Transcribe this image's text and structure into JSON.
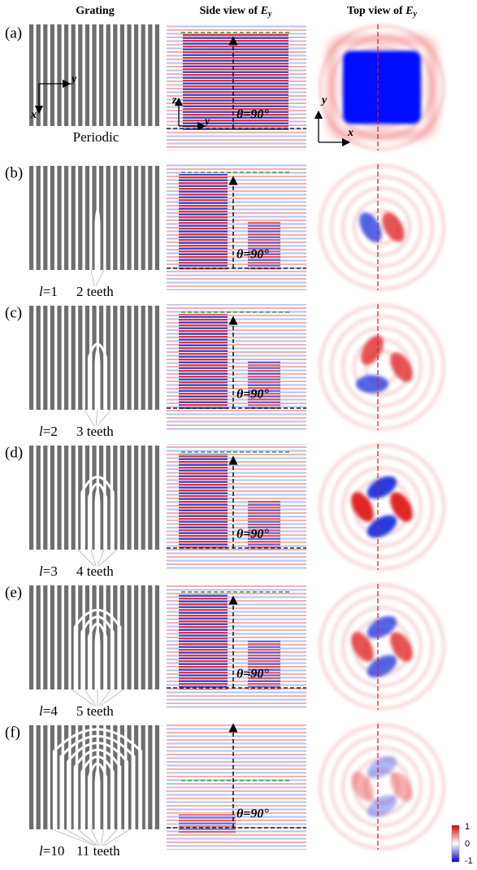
{
  "headers": [
    {
      "text": "Grating"
    },
    {
      "text": "Side view of ",
      "symbol": "E",
      "subscript": "y"
    },
    {
      "text": "Top view of ",
      "symbol": "E",
      "subscript": "y"
    }
  ],
  "panels": [
    {
      "label": "(a)",
      "caption": "Periodic",
      "angle": "θ=90°"
    },
    {
      "label": "(b)",
      "l_symbol": "l",
      "l_value": "=1",
      "teeth": "2 teeth",
      "angle": "θ=90°"
    },
    {
      "label": "(c)",
      "l_symbol": "l",
      "l_value": "=2",
      "teeth": "3 teeth",
      "angle": "θ=90°"
    },
    {
      "label": "(d)",
      "l_symbol": "l",
      "l_value": "=3",
      "teeth": "4 teeth",
      "angle": "θ=90°"
    },
    {
      "label": "(e)",
      "l_symbol": "l",
      "l_value": "=4",
      "teeth": "5 teeth",
      "angle": "θ=90°"
    },
    {
      "label": "(f)",
      "l_symbol": "l",
      "l_value": "=10",
      "teeth": "11 teeth",
      "angle": "θ=90°"
    }
  ],
  "axis_labels": {
    "grating": [
      "y",
      "x"
    ],
    "side": [
      "z",
      "y"
    ],
    "top": [
      "y",
      "x"
    ]
  },
  "colorbar": {
    "ticks": [
      1,
      0,
      -1
    ]
  }
}
